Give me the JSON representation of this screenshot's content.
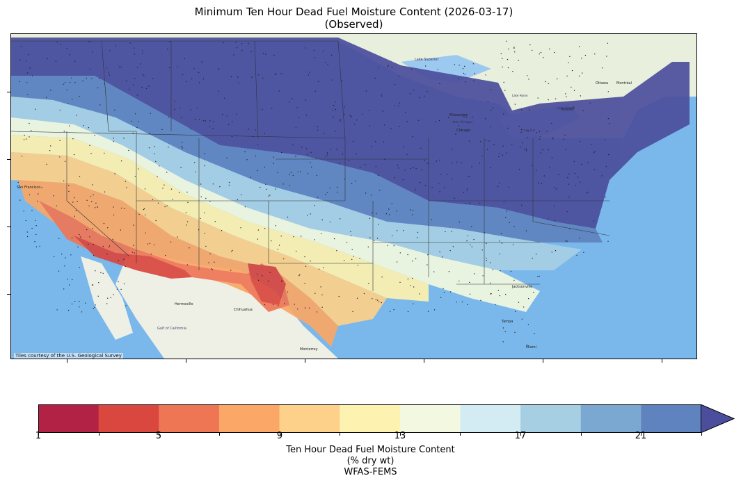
{
  "title": {
    "line1": "Minimum Ten Hour Dead Fuel Moisture Content (2026-03-17)",
    "line2": "(Observed)"
  },
  "map": {
    "basemap_credit": "Tiles courtesy of the U.S. Geological Survey",
    "place_labels": [
      "San Francisco",
      "Hermosillo",
      "Chihuahua",
      "Gulf of California",
      "Monterrey",
      "Jacksonville",
      "Tampa",
      "Miami",
      "Milwaukee",
      "Chicago",
      "Toronto",
      "Ottawa",
      "Montréal",
      "Lake Superior",
      "Lake Michigan",
      "Lake Huron",
      "Lake Erie",
      "Lake Ontario"
    ],
    "colors": {
      "ocean": "#7ab8ec",
      "land_outside": "#eef0e6"
    }
  },
  "colorbar": {
    "label_line1": "Ten Hour Dead Fuel Moisture Content",
    "label_line2": "(% dry wt)",
    "source": "WFAS-FEMS",
    "tick_labels": [
      "1",
      "5",
      "9",
      "13",
      "17",
      "21"
    ],
    "tick_values": [
      1,
      3,
      5,
      7,
      9,
      11,
      13,
      15,
      17,
      19,
      21,
      23
    ],
    "extend": "max",
    "colors": [
      "#b22244",
      "#d9473f",
      "#ef7655",
      "#faa767",
      "#fdd18a",
      "#fef2b0",
      "#f2f9e0",
      "#d3ecf4",
      "#a7cfe4",
      "#7ba8d0",
      "#5f83bf",
      "#4b4e9c"
    ]
  }
}
